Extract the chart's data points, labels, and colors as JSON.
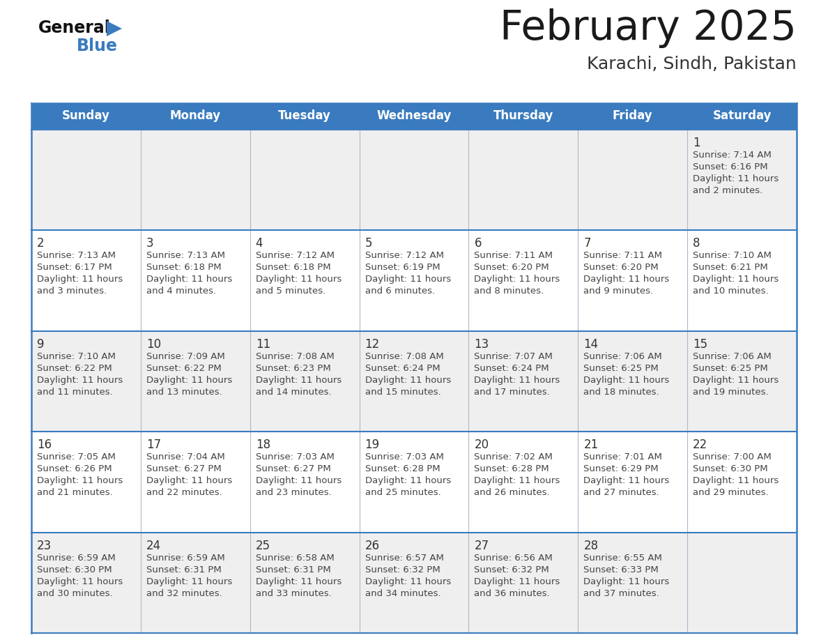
{
  "title": "February 2025",
  "subtitle": "Karachi, Sindh, Pakistan",
  "header_bg_color": "#3a7bbf",
  "header_text_color": "#ffffff",
  "cell_bg_week1": "#efefef",
  "cell_bg_week2": "#ffffff",
  "cell_bg_week3": "#efefef",
  "cell_bg_week4": "#ffffff",
  "cell_bg_week5": "#efefef",
  "grid_line_color": "#3a7bbf",
  "title_color": "#1a1a1a",
  "subtitle_color": "#333333",
  "day_num_color": "#333333",
  "info_color": "#444444",
  "logo_text_color": "#111111",
  "logo_blue_color": "#3a7bbf",
  "day_headers": [
    "Sunday",
    "Monday",
    "Tuesday",
    "Wednesday",
    "Thursday",
    "Friday",
    "Saturday"
  ],
  "calendar_data": [
    [
      null,
      null,
      null,
      null,
      null,
      null,
      {
        "day": 1,
        "sunrise": "7:14 AM",
        "sunset": "6:16 PM",
        "daylight": "11 hours",
        "daylight2": "and 2 minutes."
      }
    ],
    [
      {
        "day": 2,
        "sunrise": "7:13 AM",
        "sunset": "6:17 PM",
        "daylight": "11 hours",
        "daylight2": "and 3 minutes."
      },
      {
        "day": 3,
        "sunrise": "7:13 AM",
        "sunset": "6:18 PM",
        "daylight": "11 hours",
        "daylight2": "and 4 minutes."
      },
      {
        "day": 4,
        "sunrise": "7:12 AM",
        "sunset": "6:18 PM",
        "daylight": "11 hours",
        "daylight2": "and 5 minutes."
      },
      {
        "day": 5,
        "sunrise": "7:12 AM",
        "sunset": "6:19 PM",
        "daylight": "11 hours",
        "daylight2": "and 6 minutes."
      },
      {
        "day": 6,
        "sunrise": "7:11 AM",
        "sunset": "6:20 PM",
        "daylight": "11 hours",
        "daylight2": "and 8 minutes."
      },
      {
        "day": 7,
        "sunrise": "7:11 AM",
        "sunset": "6:20 PM",
        "daylight": "11 hours",
        "daylight2": "and 9 minutes."
      },
      {
        "day": 8,
        "sunrise": "7:10 AM",
        "sunset": "6:21 PM",
        "daylight": "11 hours",
        "daylight2": "and 10 minutes."
      }
    ],
    [
      {
        "day": 9,
        "sunrise": "7:10 AM",
        "sunset": "6:22 PM",
        "daylight": "11 hours",
        "daylight2": "and 11 minutes."
      },
      {
        "day": 10,
        "sunrise": "7:09 AM",
        "sunset": "6:22 PM",
        "daylight": "11 hours",
        "daylight2": "and 13 minutes."
      },
      {
        "day": 11,
        "sunrise": "7:08 AM",
        "sunset": "6:23 PM",
        "daylight": "11 hours",
        "daylight2": "and 14 minutes."
      },
      {
        "day": 12,
        "sunrise": "7:08 AM",
        "sunset": "6:24 PM",
        "daylight": "11 hours",
        "daylight2": "and 15 minutes."
      },
      {
        "day": 13,
        "sunrise": "7:07 AM",
        "sunset": "6:24 PM",
        "daylight": "11 hours",
        "daylight2": "and 17 minutes."
      },
      {
        "day": 14,
        "sunrise": "7:06 AM",
        "sunset": "6:25 PM",
        "daylight": "11 hours",
        "daylight2": "and 18 minutes."
      },
      {
        "day": 15,
        "sunrise": "7:06 AM",
        "sunset": "6:25 PM",
        "daylight": "11 hours",
        "daylight2": "and 19 minutes."
      }
    ],
    [
      {
        "day": 16,
        "sunrise": "7:05 AM",
        "sunset": "6:26 PM",
        "daylight": "11 hours",
        "daylight2": "and 21 minutes."
      },
      {
        "day": 17,
        "sunrise": "7:04 AM",
        "sunset": "6:27 PM",
        "daylight": "11 hours",
        "daylight2": "and 22 minutes."
      },
      {
        "day": 18,
        "sunrise": "7:03 AM",
        "sunset": "6:27 PM",
        "daylight": "11 hours",
        "daylight2": "and 23 minutes."
      },
      {
        "day": 19,
        "sunrise": "7:03 AM",
        "sunset": "6:28 PM",
        "daylight": "11 hours",
        "daylight2": "and 25 minutes."
      },
      {
        "day": 20,
        "sunrise": "7:02 AM",
        "sunset": "6:28 PM",
        "daylight": "11 hours",
        "daylight2": "and 26 minutes."
      },
      {
        "day": 21,
        "sunrise": "7:01 AM",
        "sunset": "6:29 PM",
        "daylight": "11 hours",
        "daylight2": "and 27 minutes."
      },
      {
        "day": 22,
        "sunrise": "7:00 AM",
        "sunset": "6:30 PM",
        "daylight": "11 hours",
        "daylight2": "and 29 minutes."
      }
    ],
    [
      {
        "day": 23,
        "sunrise": "6:59 AM",
        "sunset": "6:30 PM",
        "daylight": "11 hours",
        "daylight2": "and 30 minutes."
      },
      {
        "day": 24,
        "sunrise": "6:59 AM",
        "sunset": "6:31 PM",
        "daylight": "11 hours",
        "daylight2": "and 32 minutes."
      },
      {
        "day": 25,
        "sunrise": "6:58 AM",
        "sunset": "6:31 PM",
        "daylight": "11 hours",
        "daylight2": "and 33 minutes."
      },
      {
        "day": 26,
        "sunrise": "6:57 AM",
        "sunset": "6:32 PM",
        "daylight": "11 hours",
        "daylight2": "and 34 minutes."
      },
      {
        "day": 27,
        "sunrise": "6:56 AM",
        "sunset": "6:32 PM",
        "daylight": "11 hours",
        "daylight2": "and 36 minutes."
      },
      {
        "day": 28,
        "sunrise": "6:55 AM",
        "sunset": "6:33 PM",
        "daylight": "11 hours",
        "daylight2": "and 37 minutes."
      },
      null
    ]
  ]
}
